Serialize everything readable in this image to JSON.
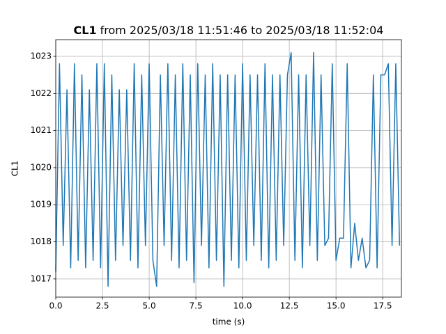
{
  "chart_data": {
    "type": "line",
    "title": "CL1",
    "subtitle": "from 2025/03/18 11:51:46 to 2025/03/18 11:52:04",
    "xlabel": "time (s)",
    "ylabel": "CL1",
    "x": [
      0,
      0.2,
      0.4,
      0.6,
      0.8,
      1.0,
      1.2,
      1.4,
      1.6,
      1.8,
      2.0,
      2.2,
      2.4,
      2.6,
      2.8,
      3.0,
      3.2,
      3.4,
      3.6,
      3.8,
      4.0,
      4.2,
      4.4,
      4.6,
      4.8,
      5.0,
      5.2,
      5.4,
      5.6,
      5.8,
      6.0,
      6.2,
      6.4,
      6.6,
      6.8,
      7.0,
      7.2,
      7.4,
      7.6,
      7.8,
      8.0,
      8.2,
      8.4,
      8.6,
      8.8,
      9.0,
      9.2,
      9.4,
      9.6,
      9.8,
      10.0,
      10.2,
      10.4,
      10.6,
      10.8,
      11.0,
      11.2,
      11.4,
      11.6,
      11.8,
      12.0,
      12.2,
      12.4,
      12.6,
      12.8,
      13.0,
      13.2,
      13.4,
      13.6,
      13.8,
      14.0,
      14.2,
      14.4,
      14.6,
      14.8,
      15.0,
      15.2,
      15.4,
      15.6,
      15.8,
      16.0,
      16.2,
      16.4,
      16.6,
      16.8,
      17.0,
      17.2,
      17.4,
      17.6,
      17.8,
      18.0,
      18.2,
      18.4
    ],
    "series": [
      {
        "name": "CL1",
        "color": "#1f77b4",
        "values": [
          1017.2,
          1022.8,
          1017.9,
          1022.1,
          1017.3,
          1022.8,
          1017.5,
          1022.5,
          1017.3,
          1022.1,
          1017.5,
          1022.8,
          1017.3,
          1022.8,
          1016.8,
          1022.5,
          1017.5,
          1022.1,
          1017.9,
          1022.1,
          1017.5,
          1022.8,
          1017.3,
          1022.5,
          1017.9,
          1022.8,
          1017.5,
          1016.8,
          1022.5,
          1017.9,
          1022.8,
          1017.5,
          1022.5,
          1017.3,
          1022.8,
          1017.5,
          1022.5,
          1016.9,
          1022.8,
          1017.9,
          1022.5,
          1017.3,
          1022.8,
          1017.5,
          1022.5,
          1016.8,
          1022.5,
          1017.5,
          1022.5,
          1017.3,
          1022.8,
          1017.5,
          1022.5,
          1017.9,
          1022.5,
          1017.5,
          1022.8,
          1017.3,
          1022.5,
          1017.5,
          1022.5,
          1017.9,
          1022.5,
          1023.1,
          1017.5,
          1022.5,
          1017.3,
          1022.5,
          1017.9,
          1023.1,
          1017.5,
          1022.5,
          1017.9,
          1018.1,
          1022.8,
          1017.5,
          1018.1,
          1018.1,
          1022.8,
          1017.3,
          1018.5,
          1017.5,
          1018.1,
          1017.3,
          1017.5,
          1022.5,
          1017.3,
          1022.5,
          1022.5,
          1022.8,
          1017.9,
          1022.8,
          1017.9
        ]
      }
    ],
    "xlim": [
      0,
      18.5
    ],
    "ylim": [
      1016.51,
      1023.45
    ],
    "xticks": [
      {
        "value": 0,
        "label": "0.0"
      },
      2.5,
      {
        "value": 5,
        "label": "5.0"
      },
      7.5,
      {
        "value": 10,
        "label": "10.0"
      },
      12.5,
      {
        "value": 15,
        "label": "15.0"
      },
      17.5
    ],
    "yticks": [
      1017,
      1018,
      1019,
      1020,
      1021,
      1022,
      1023
    ],
    "grid": true
  }
}
